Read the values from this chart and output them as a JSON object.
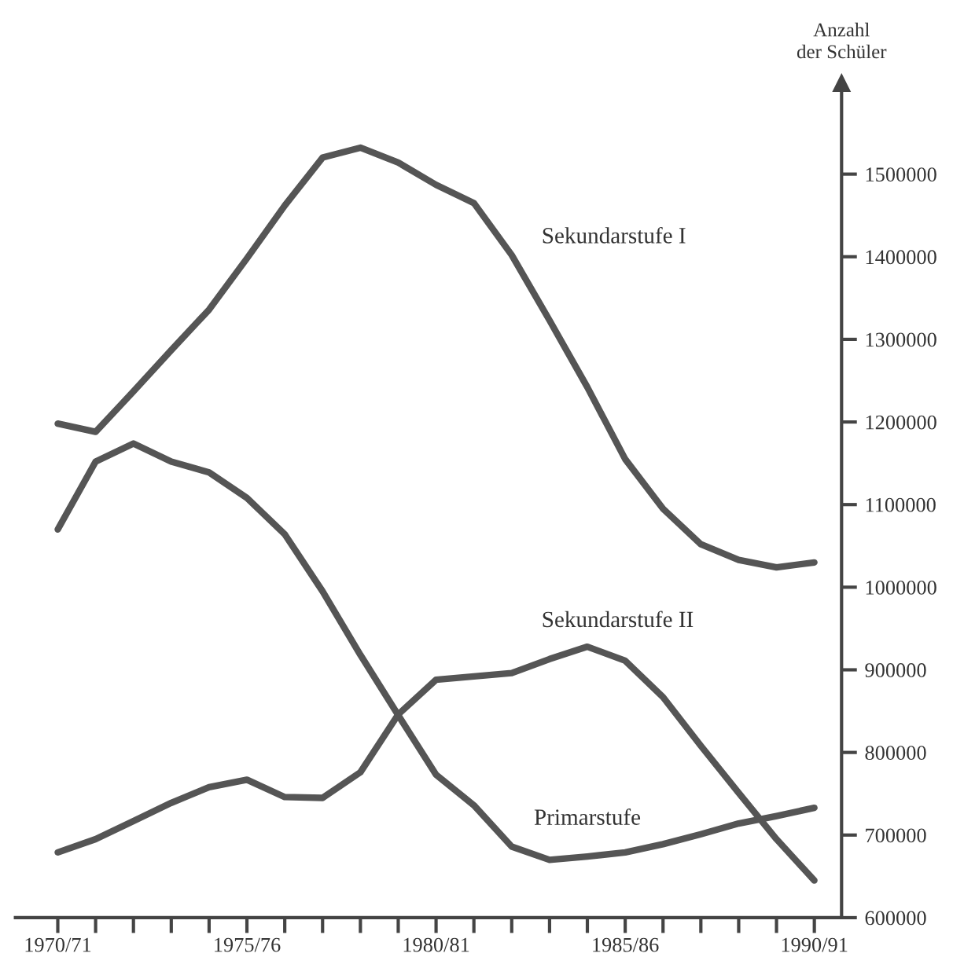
{
  "chart_data": {
    "type": "line",
    "categories": [
      "1970/71",
      null,
      null,
      null,
      null,
      "1975/76",
      null,
      null,
      null,
      null,
      "1980/81",
      null,
      null,
      null,
      null,
      "1985/86",
      null,
      null,
      null,
      null,
      "1990/91"
    ],
    "ylabel": "Anzahl\nder Schüler",
    "series": [
      {
        "name": "Sekundarstufe I",
        "color": "#555555",
        "values": [
          1198000,
          1188000,
          1237000,
          1287000,
          1336000,
          1398000,
          1462000,
          1520000,
          1532000,
          1514000,
          1487000,
          1465000,
          1402000,
          1323000,
          1242000,
          1155000,
          1095000,
          1052000,
          1033000,
          1024000,
          1030000
        ]
      },
      {
        "name": "Primarstufe",
        "color": "#555555",
        "values": [
          1070000,
          1152000,
          1174000,
          1152000,
          1139000,
          1108000,
          1064000,
          995000,
          918000,
          845000,
          773000,
          736000,
          686000,
          670000,
          674000,
          679000,
          689000,
          701000,
          714000,
          723000,
          733000
        ]
      },
      {
        "name": "Sekundarstufe II",
        "color": "#555555",
        "values": [
          679000,
          695000,
          717000,
          739000,
          758000,
          767000,
          746000,
          745000,
          776000,
          846000,
          888000,
          892000,
          896000,
          913000,
          928000,
          911000,
          867000,
          808000,
          751000,
          695000,
          645000
        ]
      }
    ],
    "ylim": [
      600000,
      1610000
    ],
    "yticks": [
      600000,
      700000,
      800000,
      900000,
      1000000,
      1100000,
      1200000,
      1300000,
      1400000,
      1500000
    ],
    "grid": false,
    "legend": false,
    "marker": "none",
    "line_style": "solid"
  }
}
